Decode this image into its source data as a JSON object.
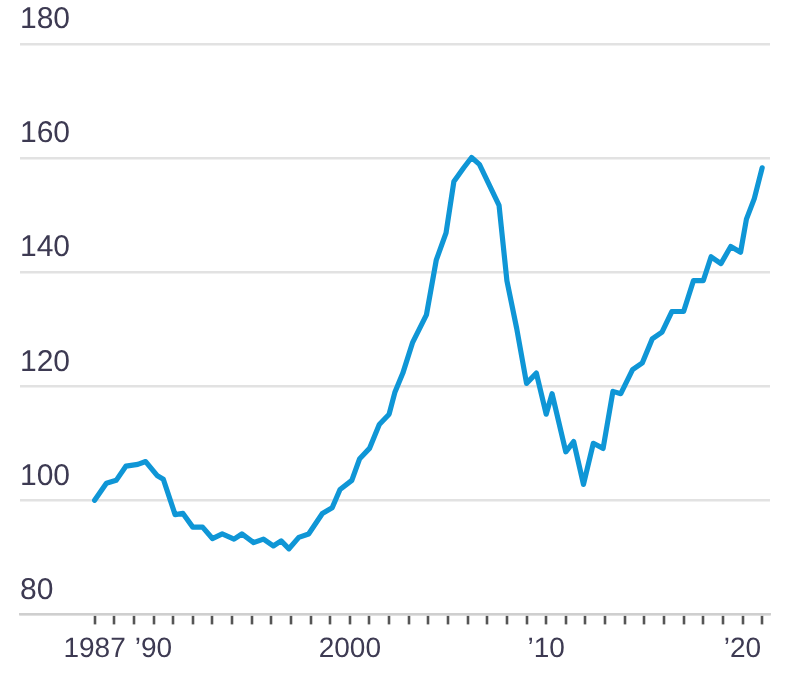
{
  "chart_data": {
    "type": "line",
    "x": [
      1987.0,
      1987.6,
      1988.1,
      1988.6,
      1989.2,
      1989.6,
      1990.2,
      1990.5,
      1991.1,
      1991.5,
      1992.0,
      1992.5,
      1993.0,
      1993.5,
      1994.1,
      1994.5,
      1995.1,
      1995.6,
      1996.1,
      1996.5,
      1996.9,
      1997.4,
      1997.9,
      1998.6,
      1999.1,
      1999.5,
      2000.1,
      2000.5,
      2001.0,
      2001.5,
      2002.0,
      2002.3,
      2002.7,
      2003.2,
      2003.9,
      2004.4,
      2004.9,
      2005.3,
      2005.8,
      2006.2,
      2006.6,
      2007.1,
      2007.6,
      2008.0,
      2008.5,
      2009.0,
      2009.5,
      2010.0,
      2010.3,
      2011.0,
      2011.4,
      2011.9,
      2012.4,
      2012.9,
      2013.4,
      2013.8,
      2014.4,
      2014.9,
      2015.4,
      2015.9,
      2016.4,
      2017.0,
      2017.5,
      2018.0,
      2018.4,
      2018.9,
      2019.4,
      2019.9,
      2020.2,
      2020.6,
      2021.0
    ],
    "series": [
      {
        "color": "#0f96d6",
        "values": [
          100,
          103,
          103.5,
          106,
          106.3,
          106.8,
          104.3,
          103.7,
          97.5,
          97.7,
          95.3,
          95.3,
          93.3,
          94.1,
          93.2,
          94.1,
          92.6,
          93.2,
          92,
          92.9,
          91.5,
          93.5,
          94.1,
          97.7,
          98.7,
          101.9,
          103.5,
          107.3,
          109.1,
          113.3,
          115.1,
          119,
          122.3,
          127.7,
          132.5,
          142.1,
          146.9,
          155.9,
          158.3,
          160.1,
          158.9,
          155.3,
          151.7,
          138.5,
          130.1,
          120.5,
          122.3,
          115.1,
          118.7,
          108.5,
          110.3,
          102.8,
          110,
          109.1,
          119.1,
          118.7,
          122.9,
          124.1,
          128.3,
          129.5,
          133.1,
          133.1,
          138.5,
          138.5,
          142.7,
          141.5,
          144.5,
          143.5,
          149.3,
          152.9,
          158.3
        ]
      }
    ],
    "xlim": [
      1983.2,
      2021.4
    ],
    "xticks": [
      {
        "value": 1987,
        "label": "1987"
      },
      {
        "value": 1988,
        "label": null
      },
      {
        "value": 1989,
        "label": null
      },
      {
        "value": 1990,
        "label": "’90"
      },
      {
        "value": 1991,
        "label": null
      },
      {
        "value": 1992,
        "label": null
      },
      {
        "value": 1993,
        "label": null
      },
      {
        "value": 1994,
        "label": null
      },
      {
        "value": 1995,
        "label": null
      },
      {
        "value": 1996,
        "label": null
      },
      {
        "value": 1997,
        "label": null
      },
      {
        "value": 1998,
        "label": null
      },
      {
        "value": 1999,
        "label": null
      },
      {
        "value": 2000,
        "label": "2000"
      },
      {
        "value": 2001,
        "label": null
      },
      {
        "value": 2002,
        "label": null
      },
      {
        "value": 2003,
        "label": null
      },
      {
        "value": 2004,
        "label": null
      },
      {
        "value": 2005,
        "label": null
      },
      {
        "value": 2006,
        "label": null
      },
      {
        "value": 2007,
        "label": null
      },
      {
        "value": 2008,
        "label": null
      },
      {
        "value": 2009,
        "label": null
      },
      {
        "value": 2010,
        "label": "’10"
      },
      {
        "value": 2011,
        "label": null
      },
      {
        "value": 2012,
        "label": null
      },
      {
        "value": 2013,
        "label": null
      },
      {
        "value": 2014,
        "label": null
      },
      {
        "value": 2015,
        "label": null
      },
      {
        "value": 2016,
        "label": null
      },
      {
        "value": 2017,
        "label": null
      },
      {
        "value": 2018,
        "label": null
      },
      {
        "value": 2019,
        "label": null
      },
      {
        "value": 2020,
        "label": "’20"
      },
      {
        "value": 2021,
        "label": null
      }
    ],
    "ylim": [
      80,
      180
    ],
    "yticks": [
      80,
      100,
      120,
      140,
      160,
      180
    ],
    "grid": "y",
    "marker": "none",
    "line_style": "solid",
    "legend": false
  }
}
